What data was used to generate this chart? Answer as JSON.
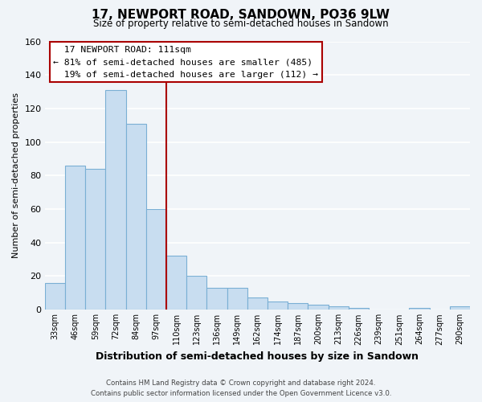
{
  "title": "17, NEWPORT ROAD, SANDOWN, PO36 9LW",
  "subtitle": "Size of property relative to semi-detached houses in Sandown",
  "xlabel": "Distribution of semi-detached houses by size in Sandown",
  "ylabel": "Number of semi-detached properties",
  "footer_line1": "Contains HM Land Registry data © Crown copyright and database right 2024.",
  "footer_line2": "Contains public sector information licensed under the Open Government Licence v3.0.",
  "bar_labels": [
    "33sqm",
    "46sqm",
    "59sqm",
    "72sqm",
    "84sqm",
    "97sqm",
    "110sqm",
    "123sqm",
    "136sqm",
    "149sqm",
    "162sqm",
    "174sqm",
    "187sqm",
    "200sqm",
    "213sqm",
    "226sqm",
    "239sqm",
    "251sqm",
    "264sqm",
    "277sqm",
    "290sqm"
  ],
  "bar_values": [
    16,
    86,
    84,
    131,
    111,
    60,
    32,
    20,
    13,
    13,
    7,
    5,
    4,
    3,
    2,
    1,
    0,
    0,
    1,
    0,
    2
  ],
  "bar_color": "#c8ddf0",
  "bar_edge_color": "#7aafd4",
  "ylim": [
    0,
    160
  ],
  "yticks": [
    0,
    20,
    40,
    60,
    80,
    100,
    120,
    140,
    160
  ],
  "property_label": "17 NEWPORT ROAD: 111sqm",
  "pct_smaller": 81,
  "count_smaller": 485,
  "pct_larger": 19,
  "count_larger": 112,
  "vline_color": "#aa0000",
  "annotation_box_edge_color": "#aa0000",
  "bg_color": "#f0f4f8",
  "plot_bg_color": "#f0f4f8",
  "grid_color": "#ffffff",
  "vline_x_index": 6
}
